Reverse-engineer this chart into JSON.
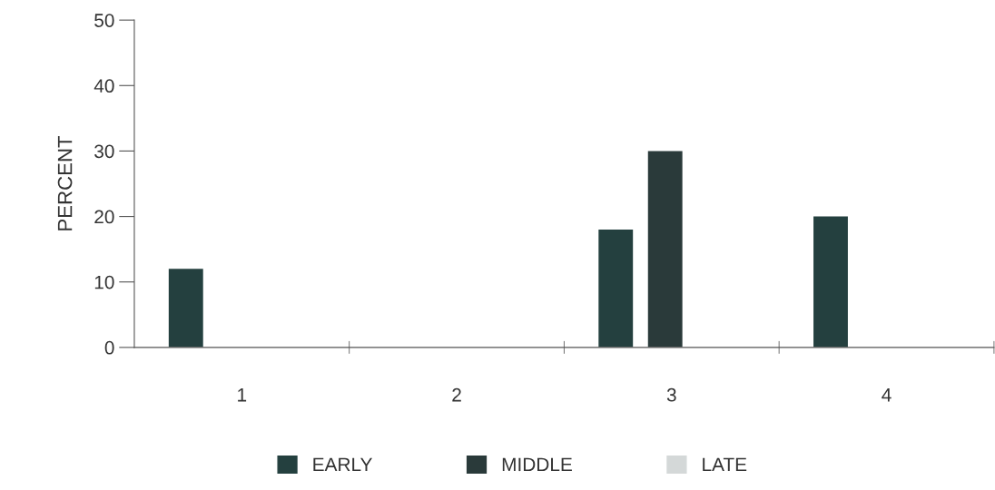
{
  "chart_data": {
    "type": "bar",
    "ylabel": "PERCENT",
    "categories": [
      "1",
      "2",
      "3",
      "4"
    ],
    "series": [
      {
        "name": "EARLY",
        "color": "#24403f",
        "values": [
          12,
          0,
          18,
          20
        ]
      },
      {
        "name": "MIDDLE",
        "color": "#2a3a3a",
        "values": [
          0,
          0,
          30,
          0
        ]
      },
      {
        "name": "LATE",
        "color": "#d4d8d8",
        "values": [
          0,
          0,
          0,
          0
        ]
      }
    ],
    "ylim": [
      0,
      50
    ],
    "yticks": [
      0,
      10,
      20,
      30,
      40,
      50
    ],
    "grid": false,
    "legend": "bottom"
  }
}
